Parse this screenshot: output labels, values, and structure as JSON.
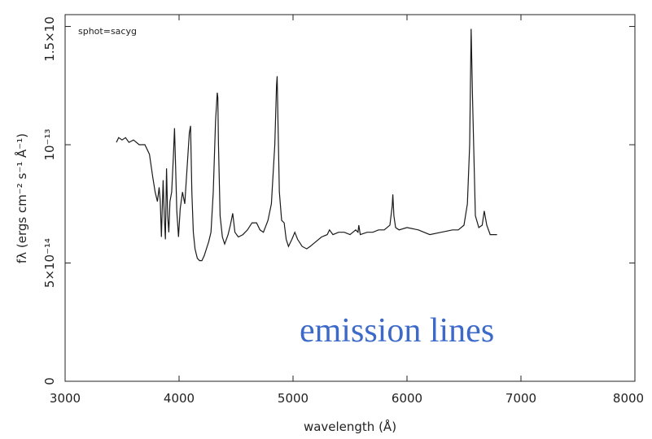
{
  "chart_data": {
    "type": "line",
    "title": "",
    "corner_label": "sphot=sacyg",
    "xlabel": "wavelength (Å)",
    "ylabel": "fλ (ergs cm⁻² s⁻¹ Å⁻¹)",
    "xlim": [
      3000,
      8000
    ],
    "ylim": [
      0,
      1.55e-13
    ],
    "x_ticks": [
      {
        "value": 3000,
        "label": "3000"
      },
      {
        "value": 4000,
        "label": "4000"
      },
      {
        "value": 5000,
        "label": "5000"
      },
      {
        "value": 6000,
        "label": "6000"
      },
      {
        "value": 7000,
        "label": "7000"
      },
      {
        "value": 8000,
        "label": "8000"
      }
    ],
    "y_ticks": [
      {
        "value": 0,
        "label": "0"
      },
      {
        "value": 5e-14,
        "label": "5×10⁻¹⁴"
      },
      {
        "value": 1e-13,
        "label": "10⁻¹³"
      },
      {
        "value": 1.5e-13,
        "label": "1.5×10"
      }
    ],
    "annotation": {
      "text": "emission lines",
      "color": "#3d6ac9"
    },
    "line_color": "#1a1a1a",
    "series": [
      {
        "x": [
          3450,
          3470,
          3500,
          3530,
          3560,
          3600,
          3650,
          3700,
          3740,
          3770,
          3790,
          3810,
          3825,
          3835,
          3845,
          3860,
          3870,
          3880,
          3890,
          3900,
          3910,
          3920,
          3935,
          3950,
          3960,
          3970,
          3980,
          3995,
          4010,
          4030,
          4050,
          4070,
          4090,
          4101,
          4112,
          4125,
          4140,
          4160,
          4180,
          4200,
          4220,
          4240,
          4260,
          4280,
          4300,
          4320,
          4335,
          4340,
          4346,
          4360,
          4380,
          4400,
          4430,
          4450,
          4471,
          4490,
          4520,
          4560,
          4600,
          4640,
          4680,
          4710,
          4740,
          4780,
          4810,
          4840,
          4855,
          4861,
          4868,
          4880,
          4900,
          4922,
          4940,
          4960,
          4990,
          5016,
          5040,
          5080,
          5120,
          5150,
          5200,
          5250,
          5300,
          5320,
          5350,
          5400,
          5450,
          5500,
          5550,
          5570,
          5577,
          5590,
          5650,
          5700,
          5750,
          5800,
          5850,
          5870,
          5876,
          5885,
          5900,
          5930,
          6000,
          6100,
          6200,
          6300,
          6400,
          6450,
          6500,
          6530,
          6550,
          6563,
          6575,
          6600,
          6630,
          6660,
          6678,
          6700,
          6730,
          6760,
          6790
        ],
        "y": [
          1.01e-13,
          1.03e-13,
          1.02e-13,
          1.03e-13,
          1.01e-13,
          1.02e-13,
          1e-13,
          1e-13,
          9.6e-14,
          8.6e-14,
          8e-14,
          7.6e-14,
          8.2e-14,
          7.6e-14,
          6.1e-14,
          8.5e-14,
          7e-14,
          6e-14,
          9e-14,
          7e-14,
          6.3e-14,
          7.6e-14,
          8e-14,
          9.5e-14,
          1.07e-13,
          9e-14,
          7.2e-14,
          6.1e-14,
          7.3e-14,
          8e-14,
          7.5e-14,
          9e-14,
          1.05e-13,
          1.08e-13,
          8e-14,
          6.3e-14,
          5.6e-14,
          5.2e-14,
          5.1e-14,
          5.1e-14,
          5.3e-14,
          5.6e-14,
          5.9e-14,
          6.3e-14,
          8e-14,
          1.1e-13,
          1.22e-13,
          1.2e-13,
          1e-13,
          7e-14,
          6.1e-14,
          5.8e-14,
          6.2e-14,
          6.6e-14,
          7.1e-14,
          6.3e-14,
          6.1e-14,
          6.2e-14,
          6.4e-14,
          6.7e-14,
          6.7e-14,
          6.4e-14,
          6.3e-14,
          6.8e-14,
          7.5e-14,
          1e-13,
          1.25e-13,
          1.29e-13,
          1.1e-13,
          8e-14,
          6.8e-14,
          6.7e-14,
          6e-14,
          5.7e-14,
          6e-14,
          6.3e-14,
          6e-14,
          5.7e-14,
          5.6e-14,
          5.7e-14,
          5.9e-14,
          6.1e-14,
          6.2e-14,
          6.4e-14,
          6.2e-14,
          6.3e-14,
          6.3e-14,
          6.2e-14,
          6.4e-14,
          6.3e-14,
          6.6e-14,
          6.2e-14,
          6.3e-14,
          6.3e-14,
          6.4e-14,
          6.4e-14,
          6.6e-14,
          7.4e-14,
          7.9e-14,
          7e-14,
          6.5e-14,
          6.4e-14,
          6.5e-14,
          6.4e-14,
          6.2e-14,
          6.3e-14,
          6.4e-14,
          6.4e-14,
          6.6e-14,
          7.5e-14,
          1e-13,
          1.49e-13,
          1.2e-13,
          7e-14,
          6.5e-14,
          6.6e-14,
          7.2e-14,
          6.6e-14,
          6.2e-14,
          6.2e-14,
          6.2e-14
        ]
      }
    ]
  }
}
